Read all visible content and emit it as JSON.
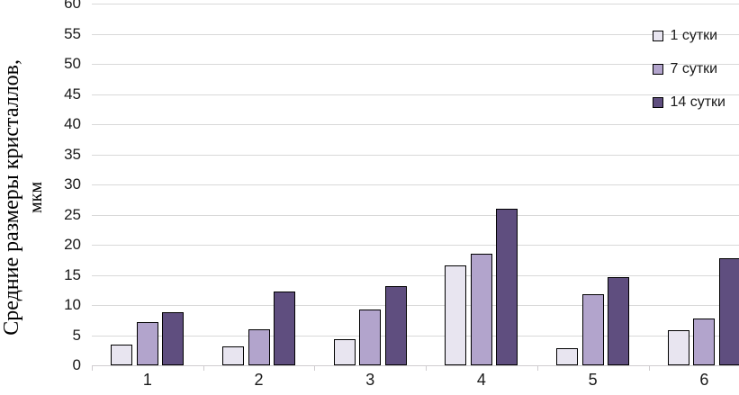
{
  "chart_data": {
    "type": "bar",
    "title": "",
    "categories": [
      "1",
      "2",
      "3",
      "4",
      "5",
      "6"
    ],
    "series": [
      {
        "name": "1 сутки",
        "color": "#e8e5f0",
        "values": [
          3.4,
          3.1,
          4.4,
          16.5,
          2.9,
          5.8
        ]
      },
      {
        "name": "7 сутки",
        "color": "#b2a4cc",
        "values": [
          7.2,
          6.0,
          9.3,
          18.5,
          11.8,
          7.8
        ]
      },
      {
        "name": "14 сутки",
        "color": "#5f4e7f",
        "values": [
          8.8,
          12.3,
          13.1,
          26.0,
          14.7,
          17.7
        ]
      }
    ],
    "xlabel": "",
    "ylabel": "Средние размеры кристаллов,",
    "ylabel_unit": "мкм",
    "ylim": [
      0,
      60
    ],
    "ytick_step": 5,
    "grid": true,
    "legend_position": "top-right",
    "colors": {
      "bar_outline": "#000000",
      "gridline": "#d9d9d9",
      "axis_line": "#cfcccf",
      "text": "#1a1a1a"
    }
  }
}
